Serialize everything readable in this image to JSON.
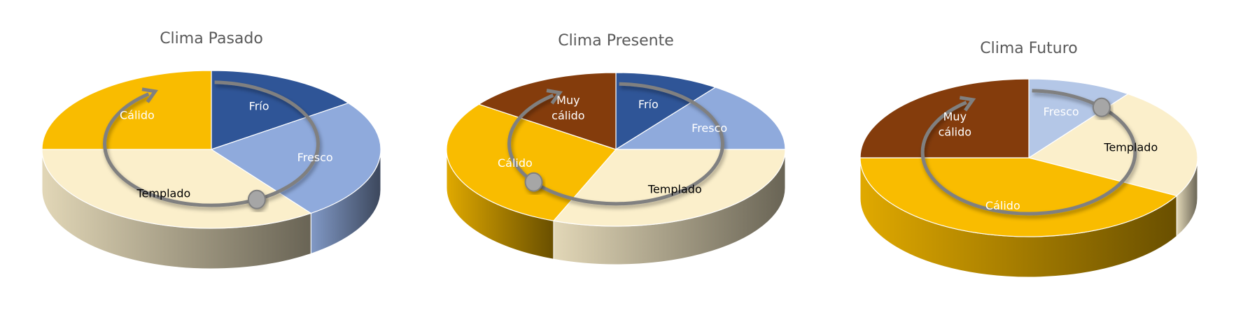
{
  "chart_data": [
    {
      "type": "pie",
      "title": "Clima Pasado",
      "categories": [
        "Frío",
        "Fresco",
        "Templado",
        "Cálido"
      ],
      "values": [
        15,
        25,
        35,
        25
      ],
      "colors": [
        "#2f5597",
        "#8faadc",
        "#fbefcb",
        "#f9bc00"
      ],
      "label_colors": [
        "#ffffff",
        "#ffffff",
        "#000000",
        "#ffffff"
      ],
      "style": "3d",
      "marker_position": 0.43
    },
    {
      "type": "pie",
      "title": "Clima Presente",
      "categories": [
        "Frío",
        "Fresco",
        "Templado",
        "Cálido",
        "Muy\ncálido"
      ],
      "values": [
        10,
        15,
        31,
        29,
        15
      ],
      "colors": [
        "#2f5597",
        "#8faadc",
        "#fbefcb",
        "#f9bc00",
        "#843c0c"
      ],
      "label_colors": [
        "#ffffff",
        "#ffffff",
        "#000000",
        "#ffffff",
        "#ffffff"
      ],
      "style": "3d",
      "marker_position": 0.64
    },
    {
      "type": "pie",
      "title": "Clima Futuro",
      "categories": [
        "Fresco",
        "Templado",
        "Cálido",
        "Muy\ncálido"
      ],
      "values": [
        10,
        23,
        42,
        25
      ],
      "colors": [
        "#b4c7e7",
        "#fbefcb",
        "#f9bc00",
        "#843c0c"
      ],
      "label_colors": [
        "#ffffff",
        "#000000",
        "#ffffff",
        "#ffffff"
      ],
      "style": "3d",
      "marker_position": 0.12
    }
  ]
}
